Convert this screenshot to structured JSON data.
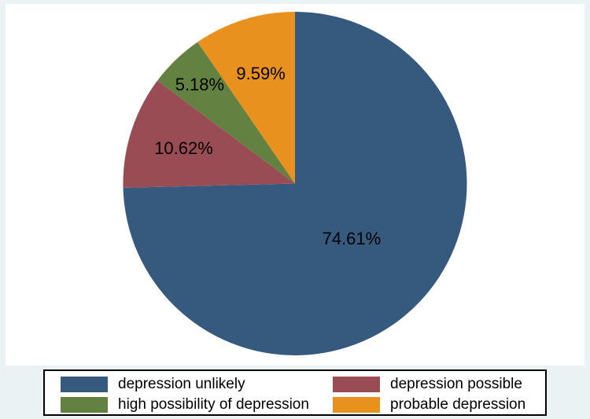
{
  "figure": {
    "background_color": "#eaf2f3",
    "plot_background_color": "#ffffff"
  },
  "chart_data": {
    "type": "pie",
    "title": "",
    "start_angle_deg": 0,
    "direction": "clockwise",
    "legend_position": "bottom",
    "legend_columns": 2,
    "slices": [
      {
        "label": "depression unlikely",
        "value": 74.61,
        "value_label": "74.61%",
        "color": "#365a7e",
        "label_radius_fraction": 0.46
      },
      {
        "label": "depression possible",
        "value": 10.62,
        "value_label": "10.62%",
        "color": "#9a4c54",
        "label_radius_fraction": 0.68
      },
      {
        "label": "high possibility of depression",
        "value": 5.18,
        "value_label": "5.18%",
        "color": "#638140",
        "label_radius_fraction": 0.8
      },
      {
        "label": "probable depression",
        "value": 9.59,
        "value_label": "9.59%",
        "color": "#e8911e",
        "label_radius_fraction": 0.67
      }
    ]
  }
}
